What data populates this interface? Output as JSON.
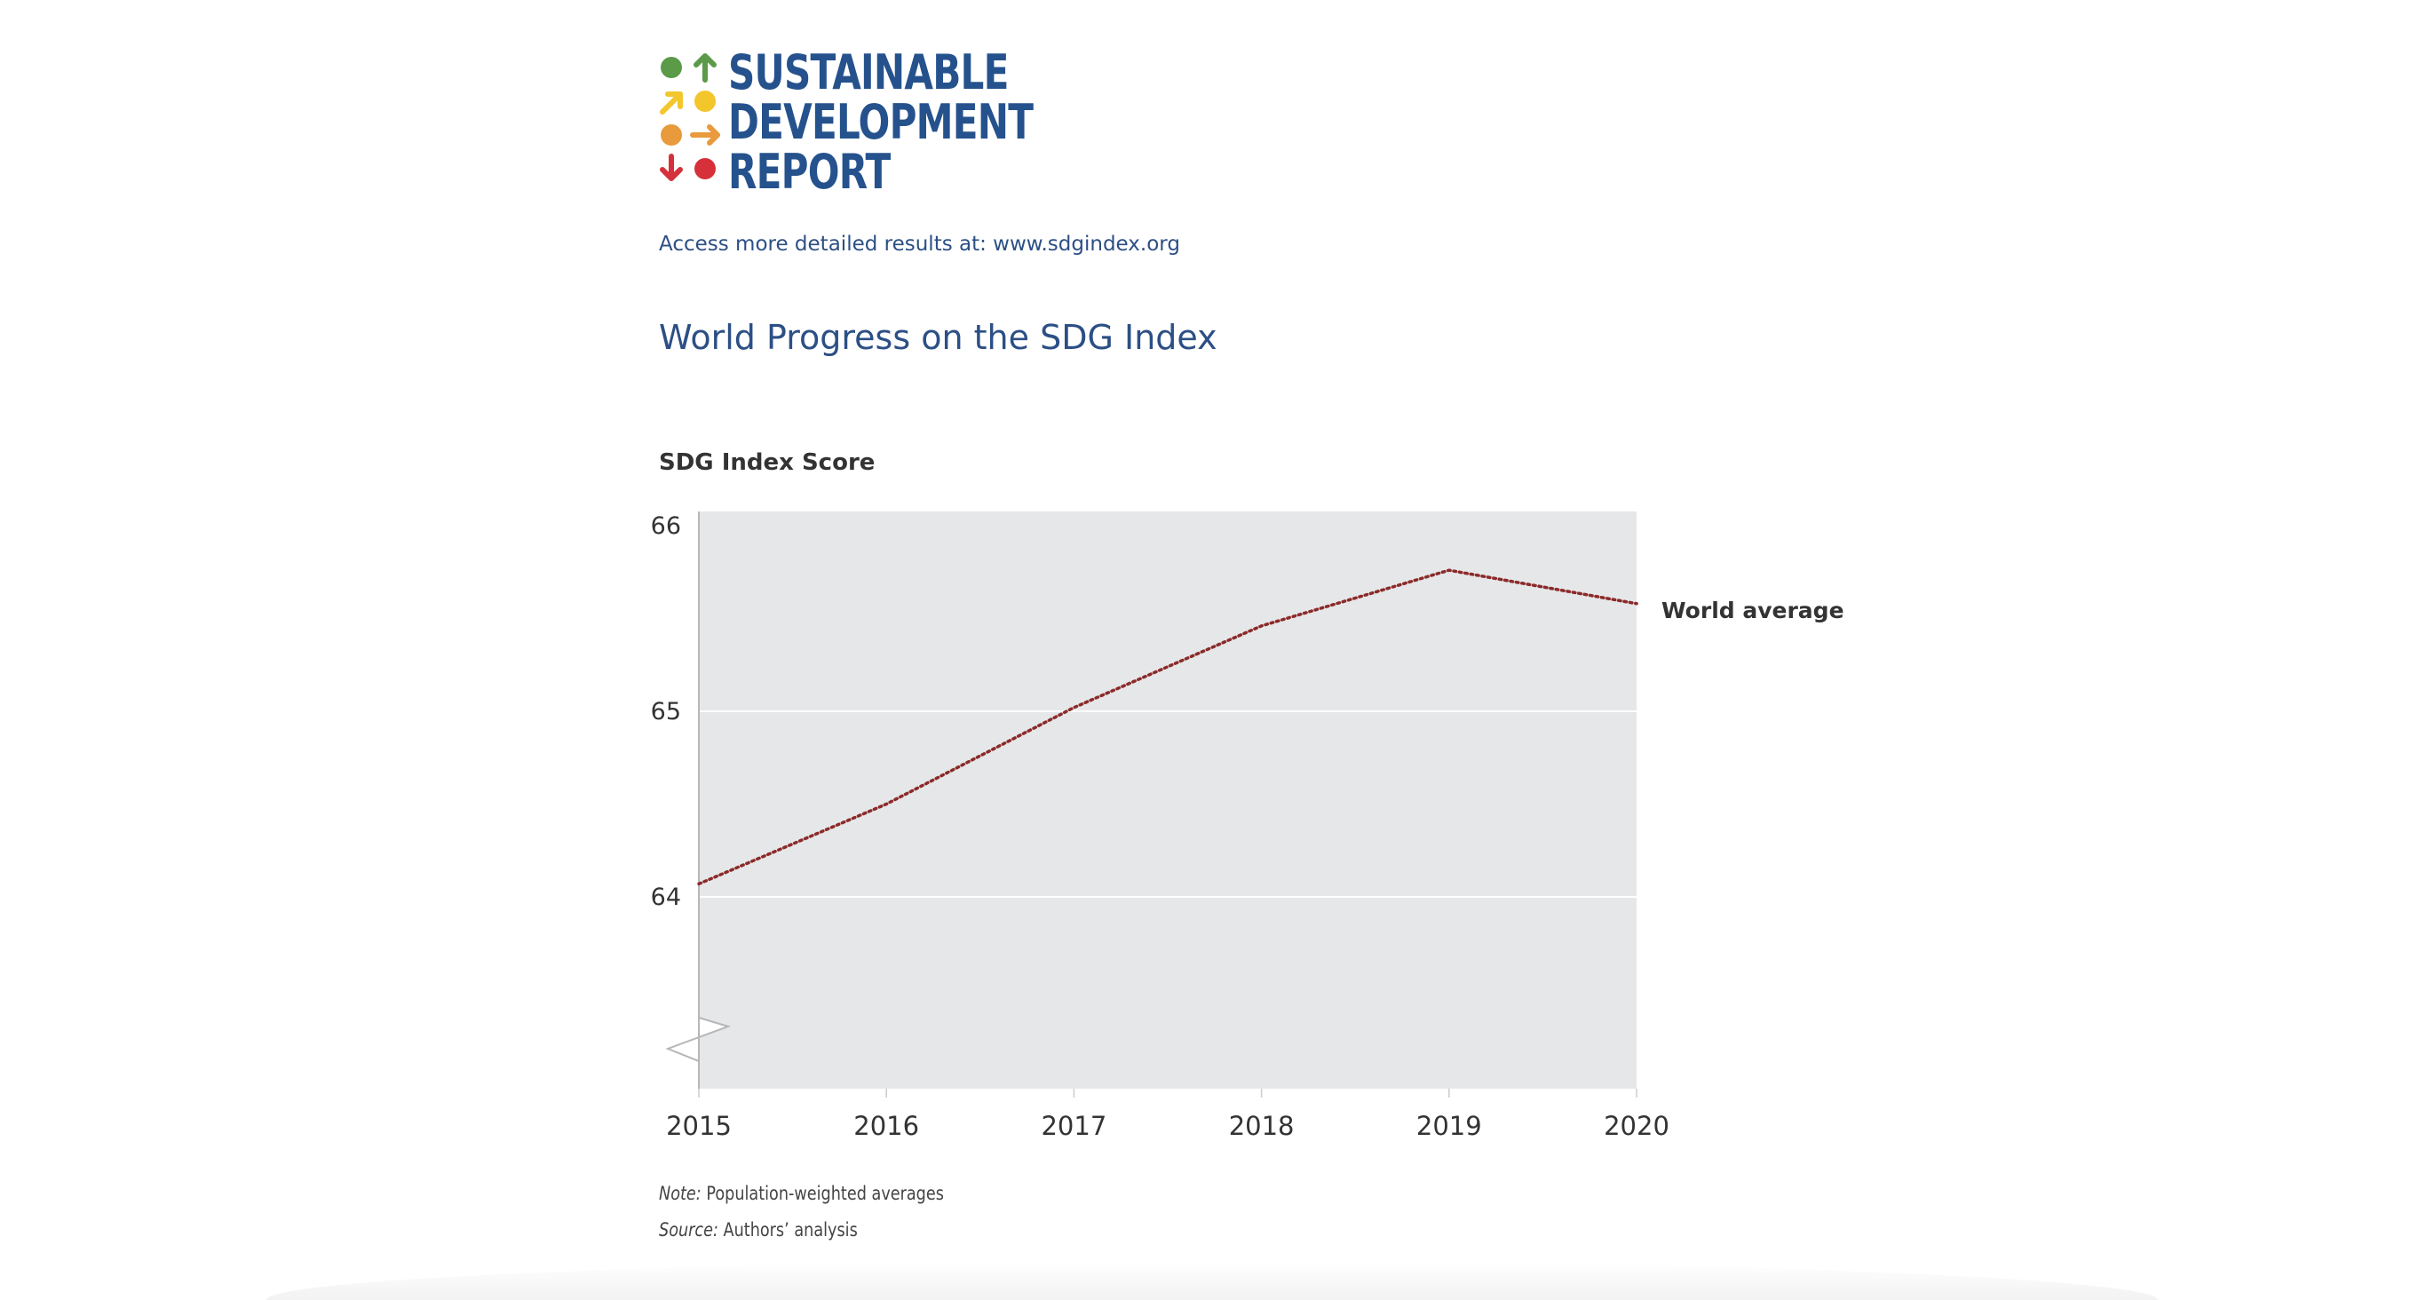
{
  "logo": {
    "lines": [
      "SUSTAINABLE",
      "DEVELOPMENT",
      "REPORT"
    ],
    "colors": {
      "green": "#5a9a48",
      "yellow": "#f3c62b",
      "orange": "#e89a3c",
      "red": "#d6303b",
      "navy": "#25528d"
    },
    "icons": [
      "green-dot-icon",
      "green-up-arrow-icon",
      "yellow-diagonal-arrow-icon",
      "yellow-dot-icon",
      "orange-dot-icon",
      "orange-right-arrow-icon",
      "red-down-arrow-icon",
      "red-dot-icon"
    ]
  },
  "access_text": "Access more detailed results at: www.sdgindex.org",
  "page_title": "World Progress on the SDG Index",
  "chart_data": {
    "type": "line",
    "title": "World Progress on the SDG Index",
    "ylabel": "SDG Index Score",
    "xlabel": "",
    "x": [
      2015,
      2016,
      2017,
      2018,
      2019,
      2020
    ],
    "series": [
      {
        "name": "World average",
        "values": [
          64.07,
          64.5,
          65.02,
          65.46,
          65.76,
          65.58
        ],
        "color": "#8b2a2a",
        "style": "dotted"
      }
    ],
    "yticks": [
      64,
      65,
      66
    ],
    "ylim": [
      63,
      66
    ],
    "xlim": [
      2015,
      2020
    ],
    "axis_break": "y-axis below 64",
    "grid": "horizontal",
    "plot_background": "#e6e7e8",
    "legend": "right end label"
  },
  "notes": {
    "note_label": "Note:",
    "note_text": "Population-weighted averages",
    "source_label": "Source:",
    "source_text": "Authors’ analysis"
  }
}
